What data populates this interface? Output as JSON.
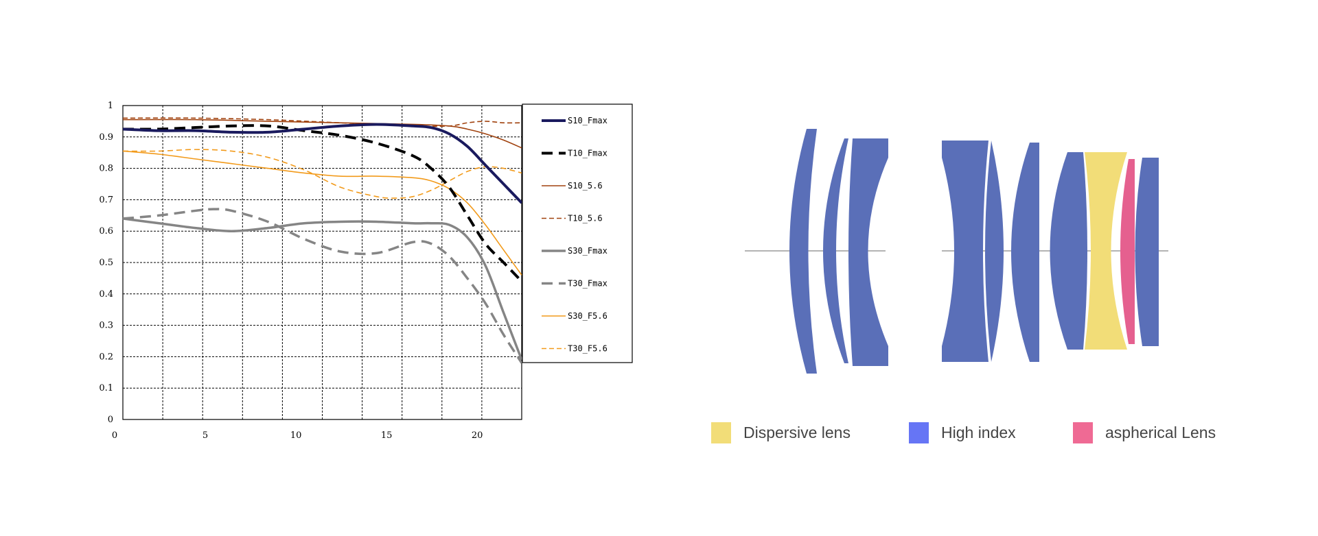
{
  "chart_data": {
    "type": "line",
    "title": "",
    "xlabel": "",
    "ylabel": "",
    "xlim": [
      0,
      22
    ],
    "ylim": [
      0,
      1
    ],
    "x_ticks": [
      "0",
      "5",
      "10",
      "15",
      "20"
    ],
    "y_ticks": [
      "0",
      "0.1",
      "0.2",
      "0.3",
      "0.4",
      "0.5",
      "0.6",
      "0.7",
      "0.8",
      "0.9",
      "1"
    ],
    "grid": true,
    "legend_position": "right",
    "series": [
      {
        "name": "S10_Fmax",
        "color": "#1a1a5e",
        "style": "solid",
        "x": [
          0,
          2,
          4,
          6,
          8,
          10,
          12,
          14,
          16,
          17,
          18,
          19,
          20,
          21,
          22
        ],
        "y": [
          0.925,
          0.92,
          0.92,
          0.915,
          0.915,
          0.925,
          0.935,
          0.94,
          0.935,
          0.93,
          0.91,
          0.87,
          0.81,
          0.75,
          0.69
        ]
      },
      {
        "name": "T10_Fmax",
        "color": "#000000",
        "style": "dashed",
        "x": [
          0,
          2,
          4,
          6,
          8,
          10,
          12,
          14,
          16,
          17,
          18,
          19,
          20,
          21,
          22
        ],
        "y": [
          0.925,
          0.925,
          0.93,
          0.935,
          0.935,
          0.92,
          0.905,
          0.88,
          0.84,
          0.8,
          0.74,
          0.65,
          0.56,
          0.5,
          0.44
        ]
      },
      {
        "name": "S10_5.6",
        "color": "#a0410d",
        "style": "solid",
        "x": [
          0,
          4,
          8,
          12,
          16,
          18,
          19,
          20,
          21,
          22
        ],
        "y": [
          0.955,
          0.955,
          0.95,
          0.945,
          0.94,
          0.935,
          0.925,
          0.91,
          0.89,
          0.865
        ]
      },
      {
        "name": "T10_5.6",
        "color": "#a0410d",
        "style": "dashed",
        "x": [
          0,
          4,
          8,
          12,
          16,
          18,
          19,
          20,
          21,
          22
        ],
        "y": [
          0.96,
          0.96,
          0.955,
          0.945,
          0.935,
          0.935,
          0.945,
          0.95,
          0.945,
          0.945
        ]
      },
      {
        "name": "S30_Fmax",
        "color": "#858585",
        "style": "solid",
        "x": [
          0,
          2,
          4,
          6,
          8,
          10,
          12,
          14,
          16,
          17,
          18,
          19,
          20,
          21,
          22
        ],
        "y": [
          0.64,
          0.625,
          0.61,
          0.6,
          0.61,
          0.625,
          0.63,
          0.63,
          0.625,
          0.625,
          0.62,
          0.58,
          0.49,
          0.34,
          0.19
        ]
      },
      {
        "name": "T30_Fmax",
        "color": "#858585",
        "style": "dashed",
        "x": [
          0,
          2,
          4,
          5,
          6,
          8,
          10,
          12,
          14,
          16,
          17,
          18,
          19,
          20,
          21,
          22
        ],
        "y": [
          0.64,
          0.65,
          0.665,
          0.67,
          0.665,
          0.63,
          0.575,
          0.535,
          0.53,
          0.565,
          0.56,
          0.52,
          0.45,
          0.37,
          0.27,
          0.18
        ]
      },
      {
        "name": "S30_F5.6",
        "color": "#f29a1a",
        "style": "solid",
        "x": [
          0,
          2,
          4,
          6,
          8,
          10,
          12,
          14,
          16,
          17,
          18,
          19,
          20,
          21,
          22
        ],
        "y": [
          0.855,
          0.845,
          0.83,
          0.815,
          0.8,
          0.785,
          0.775,
          0.775,
          0.77,
          0.76,
          0.735,
          0.69,
          0.62,
          0.54,
          0.46
        ]
      },
      {
        "name": "T30_F5.6",
        "color": "#f29a1a",
        "style": "dashed",
        "x": [
          0,
          2,
          4,
          6,
          8,
          10,
          12,
          14,
          15,
          16,
          17,
          18,
          19,
          20,
          21,
          22
        ],
        "y": [
          0.855,
          0.855,
          0.86,
          0.855,
          0.835,
          0.795,
          0.74,
          0.71,
          0.705,
          0.71,
          0.73,
          0.76,
          0.79,
          0.805,
          0.8,
          0.785
        ]
      }
    ]
  },
  "lens_legend": [
    {
      "label": "Dispersive lens",
      "color": "#f2dd78"
    },
    {
      "label": "High index",
      "color": "#6675f5"
    },
    {
      "label": "aspherical Lens",
      "color": "#ef6a94"
    }
  ],
  "lens_colors": {
    "high_index_element": "#5a6fb8",
    "dispersive_element": "#f2dd78",
    "aspherical_element": "#e5608f",
    "optical_axis": "#b3b3b3"
  }
}
